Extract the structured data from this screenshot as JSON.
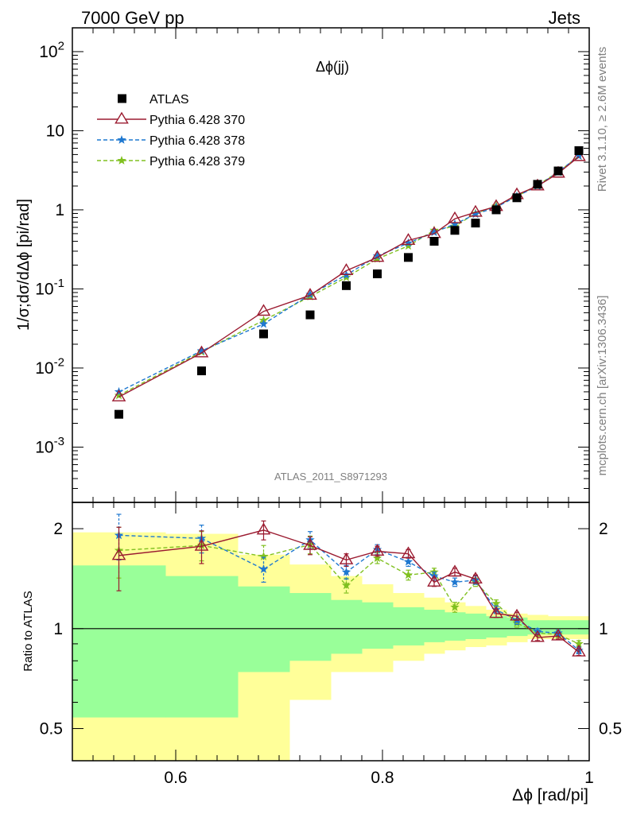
{
  "header": {
    "left": "7000 GeV pp",
    "right": "Jets"
  },
  "side_labels": {
    "rivet": "Rivet 3.1.10, ≥ 2.6M events",
    "mcplots": "mcplots.cern.ch [arXiv:1306.3436]"
  },
  "analysis_id": "ATLAS_2011_S8971293",
  "chart_data": [
    {
      "type": "scatter",
      "panel": "main",
      "title": "Δϕ(jj)",
      "ylabel": "1/σ;dσ/dΔϕ [pi/rad]",
      "xlabel": "",
      "yscale": "log",
      "xlim": [
        0.5,
        1.0
      ],
      "ylim": [
        0.0002,
        200
      ],
      "y_ticks": [
        {
          "v": 0.001,
          "label": "10^{-3}"
        },
        {
          "v": 0.01,
          "label": "10^{-2}"
        },
        {
          "v": 0.1,
          "label": "10^{-1}"
        },
        {
          "v": 1,
          "label": "1"
        },
        {
          "v": 10,
          "label": "10"
        },
        {
          "v": 100,
          "label": "10^{2}"
        }
      ],
      "legend": "top-left",
      "x": [
        0.545,
        0.625,
        0.685,
        0.73,
        0.765,
        0.795,
        0.825,
        0.85,
        0.87,
        0.89,
        0.91,
        0.93,
        0.95,
        0.97,
        0.99
      ],
      "series": [
        {
          "name": "ATLAS",
          "style": "data",
          "color": "#000000",
          "values": [
            0.0026,
            0.0092,
            0.027,
            0.047,
            0.11,
            0.155,
            0.25,
            0.4,
            0.55,
            0.68,
            1.0,
            1.42,
            2.1,
            3.1,
            5.6
          ]
        },
        {
          "name": "Pythia 6.428 370",
          "style": "solid",
          "color": "#9b1b30",
          "values": [
            0.0043,
            0.0155,
            0.052,
            0.083,
            0.17,
            0.25,
            0.41,
            0.5,
            0.77,
            0.93,
            1.1,
            1.55,
            2.0,
            2.9,
            4.7
          ]
        },
        {
          "name": "Pythia 6.428 378",
          "style": "dashed",
          "color": "#1f78d0",
          "values": [
            0.005,
            0.0165,
            0.036,
            0.085,
            0.15,
            0.26,
            0.38,
            0.52,
            0.66,
            0.88,
            1.08,
            1.48,
            2.0,
            3.0,
            4.8
          ]
        },
        {
          "name": "Pythia 6.428 379",
          "style": "dashed",
          "color": "#80c020",
          "values": [
            0.0045,
            0.016,
            0.04,
            0.08,
            0.14,
            0.24,
            0.35,
            0.55,
            0.62,
            0.9,
            1.12,
            1.48,
            2.05,
            3.0,
            4.8
          ]
        }
      ]
    },
    {
      "type": "line",
      "panel": "ratio",
      "ylabel": "Ratio to ATLAS",
      "xlabel": "Δϕ [rad/pi]",
      "yscale": "log",
      "xlim": [
        0.5,
        1.0
      ],
      "ylim": [
        0.4,
        2.4
      ],
      "x_ticks": [
        {
          "v": 0.6,
          "label": "0.6"
        },
        {
          "v": 0.8,
          "label": "0.8"
        },
        {
          "v": 1.0,
          "label": "1"
        }
      ],
      "y_ticks": [
        {
          "v": 0.5,
          "label": "0.5"
        },
        {
          "v": 1,
          "label": "1"
        },
        {
          "v": 2,
          "label": "2"
        }
      ],
      "bin_edges": [
        0.5,
        0.59,
        0.66,
        0.71,
        0.75,
        0.78,
        0.81,
        0.84,
        0.86,
        0.88,
        0.9,
        0.92,
        0.94,
        0.96,
        0.98,
        1.0
      ],
      "band_inner": {
        "color": "#99ff99",
        "low": [
          0.54,
          0.54,
          0.74,
          0.8,
          0.84,
          0.87,
          0.89,
          0.91,
          0.92,
          0.93,
          0.94,
          0.95,
          0.96,
          0.96,
          0.96
        ],
        "high": [
          1.55,
          1.44,
          1.34,
          1.28,
          1.22,
          1.2,
          1.16,
          1.14,
          1.12,
          1.11,
          1.09,
          1.08,
          1.06,
          1.06,
          1.06
        ]
      },
      "band_outer": {
        "color": "#ffff99",
        "low": [
          0.38,
          0.38,
          0.38,
          0.61,
          0.74,
          0.74,
          0.8,
          0.84,
          0.86,
          0.88,
          0.89,
          0.91,
          0.93,
          0.93,
          0.93
        ],
        "high": [
          1.95,
          1.93,
          1.67,
          1.56,
          1.44,
          1.36,
          1.28,
          1.24,
          1.2,
          1.17,
          1.14,
          1.11,
          1.1,
          1.09,
          1.09
        ]
      },
      "x": [
        0.545,
        0.625,
        0.685,
        0.73,
        0.765,
        0.795,
        0.825,
        0.85,
        0.87,
        0.89,
        0.91,
        0.93,
        0.95,
        0.97,
        0.99
      ],
      "series": [
        {
          "name": "Pythia 6.428 370",
          "style": "solid",
          "color": "#9b1b30",
          "marker": "triangle",
          "values": [
            1.66,
            1.77,
            1.98,
            1.78,
            1.61,
            1.71,
            1.68,
            1.38,
            1.48,
            1.41,
            1.11,
            1.09,
            0.94,
            0.95,
            0.85
          ],
          "err": [
            0.36,
            0.2,
            0.13,
            0.11,
            0.07,
            0.06,
            0.05,
            0.04,
            0.04,
            0.04,
            0.03,
            0.03,
            0.02,
            0.02,
            0.02
          ]
        },
        {
          "name": "Pythia 6.428 378",
          "style": "dashed",
          "color": "#1f78d0",
          "marker": "star",
          "values": [
            1.91,
            1.87,
            1.51,
            1.85,
            1.48,
            1.73,
            1.59,
            1.44,
            1.38,
            1.4,
            1.14,
            1.06,
            0.98,
            0.97,
            0.86
          ],
          "err": [
            0.3,
            0.18,
            0.13,
            0.11,
            0.07,
            0.06,
            0.05,
            0.04,
            0.04,
            0.04,
            0.03,
            0.03,
            0.02,
            0.02,
            0.02
          ]
        },
        {
          "name": "Pythia 6.428 379",
          "style": "dashed",
          "color": "#80c020",
          "marker": "star",
          "values": [
            1.72,
            1.78,
            1.65,
            1.79,
            1.35,
            1.63,
            1.45,
            1.48,
            1.16,
            1.38,
            1.19,
            1.04,
            0.97,
            0.96,
            0.9
          ],
          "err": [
            0.3,
            0.18,
            0.13,
            0.11,
            0.07,
            0.06,
            0.05,
            0.04,
            0.04,
            0.04,
            0.03,
            0.03,
            0.02,
            0.02,
            0.02
          ]
        }
      ]
    }
  ]
}
